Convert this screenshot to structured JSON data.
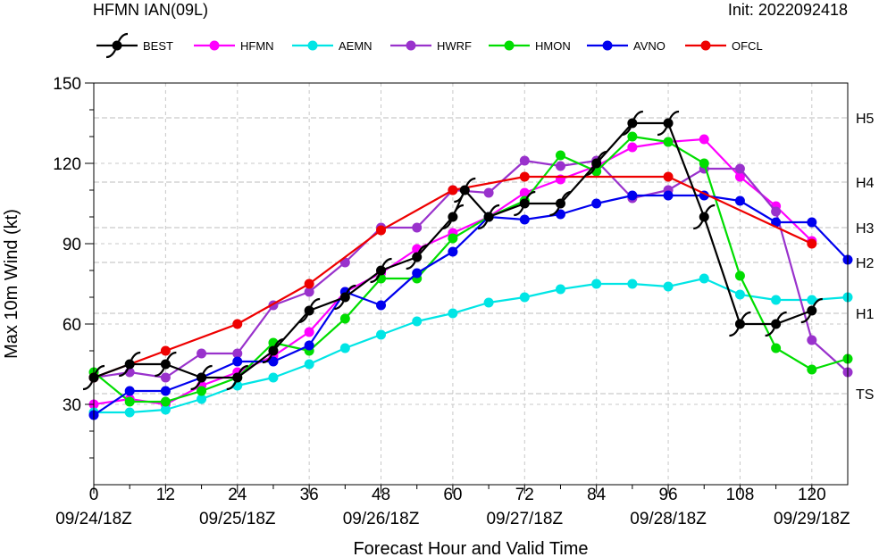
{
  "header": {
    "title": "HFMN IAN(09L)",
    "init": "Init: 2022092418"
  },
  "chart_data": {
    "type": "line",
    "title": "HFMN IAN(09L)",
    "subtitle": "Init: 2022092418",
    "xlabel": "Forecast Hour and Valid Time",
    "ylabel": "Max 10m Wind (kt)",
    "xlim": [
      0,
      126
    ],
    "ylim": [
      0,
      150
    ],
    "xticks": [
      0,
      12,
      24,
      36,
      48,
      60,
      72,
      84,
      96,
      108,
      120
    ],
    "xtick_dates": [
      {
        "x": 0,
        "label": "09/24/18Z"
      },
      {
        "x": 24,
        "label": "09/25/18Z"
      },
      {
        "x": 48,
        "label": "09/26/18Z"
      },
      {
        "x": 72,
        "label": "09/27/18Z"
      },
      {
        "x": 96,
        "label": "09/28/18Z"
      },
      {
        "x": 120,
        "label": "09/29/18Z"
      }
    ],
    "yticks": [
      30,
      60,
      90,
      120,
      150
    ],
    "grid": true,
    "legend_position": "top",
    "category_lines": [
      {
        "label": "TS",
        "value": 34
      },
      {
        "label": "H1",
        "value": 64
      },
      {
        "label": "H2",
        "value": 83
      },
      {
        "label": "H3",
        "value": 96
      },
      {
        "label": "H4",
        "value": 113
      },
      {
        "label": "H5",
        "value": 137
      }
    ],
    "series": [
      {
        "name": "BEST",
        "color": "#000000",
        "marker": "hurricane-symbol",
        "x": [
          0,
          6,
          12,
          18,
          24,
          30,
          36,
          42,
          48,
          54,
          60,
          62,
          66,
          72,
          78,
          84,
          90,
          96,
          102,
          108,
          114,
          120
        ],
        "values": [
          40,
          45,
          45,
          40,
          40,
          50,
          65,
          70,
          80,
          85,
          100,
          110,
          100,
          105,
          105,
          120,
          135,
          135,
          100,
          60,
          60,
          65
        ]
      },
      {
        "name": "HFMN",
        "color": "#ff00ff",
        "marker": "circle",
        "x": [
          0,
          6,
          12,
          18,
          24,
          30,
          36,
          42,
          48,
          54,
          60,
          66,
          72,
          78,
          84,
          90,
          96,
          102,
          108,
          114,
          120
        ],
        "values": [
          30,
          32,
          30,
          37,
          42,
          48,
          57,
          72,
          79,
          88,
          94,
          100,
          109,
          114,
          119,
          126,
          128,
          129,
          115,
          104,
          91
        ]
      },
      {
        "name": "AEMN",
        "color": "#00e5e5",
        "marker": "circle",
        "x": [
          0,
          6,
          12,
          18,
          24,
          30,
          36,
          42,
          48,
          54,
          60,
          66,
          72,
          78,
          84,
          90,
          96,
          102,
          108,
          114,
          120,
          126
        ],
        "values": [
          27,
          27,
          28,
          32,
          37,
          40,
          45,
          51,
          56,
          61,
          64,
          68,
          70,
          73,
          75,
          75,
          74,
          77,
          71,
          69,
          69,
          70
        ]
      },
      {
        "name": "HWRF",
        "color": "#9932cc",
        "marker": "circle",
        "x": [
          0,
          6,
          12,
          18,
          24,
          30,
          36,
          42,
          48,
          54,
          60,
          66,
          72,
          78,
          84,
          90,
          96,
          102,
          108,
          114,
          120,
          126
        ],
        "values": [
          40,
          42,
          40,
          49,
          49,
          67,
          72,
          83,
          96,
          96,
          110,
          109,
          121,
          119,
          121,
          107,
          110,
          118,
          118,
          102,
          54,
          42
        ]
      },
      {
        "name": "HMON",
        "color": "#00dd00",
        "marker": "circle",
        "x": [
          0,
          6,
          12,
          18,
          24,
          30,
          36,
          42,
          48,
          54,
          60,
          66,
          72,
          78,
          84,
          90,
          96,
          102,
          108,
          114,
          120,
          126
        ],
        "values": [
          42,
          31,
          31,
          35,
          40,
          53,
          50,
          62,
          77,
          77,
          92,
          100,
          106,
          123,
          117,
          130,
          128,
          120,
          78,
          51,
          43,
          47
        ]
      },
      {
        "name": "AVNO",
        "color": "#0000ee",
        "marker": "circle",
        "x": [
          0,
          6,
          12,
          18,
          24,
          30,
          36,
          42,
          48,
          54,
          60,
          66,
          72,
          78,
          84,
          90,
          96,
          102,
          108,
          114,
          120,
          126
        ],
        "values": [
          26,
          35,
          35,
          40,
          46,
          46,
          52,
          72,
          67,
          79,
          87,
          100,
          99,
          101,
          105,
          108,
          108,
          108,
          106,
          98,
          98,
          84
        ]
      },
      {
        "name": "OFCL",
        "color": "#ee0000",
        "marker": "circle",
        "x": [
          0,
          12,
          24,
          36,
          48,
          60,
          72,
          96,
          120
        ],
        "values": [
          40,
          50,
          60,
          75,
          95,
          110,
          115,
          115,
          90
        ]
      }
    ]
  }
}
